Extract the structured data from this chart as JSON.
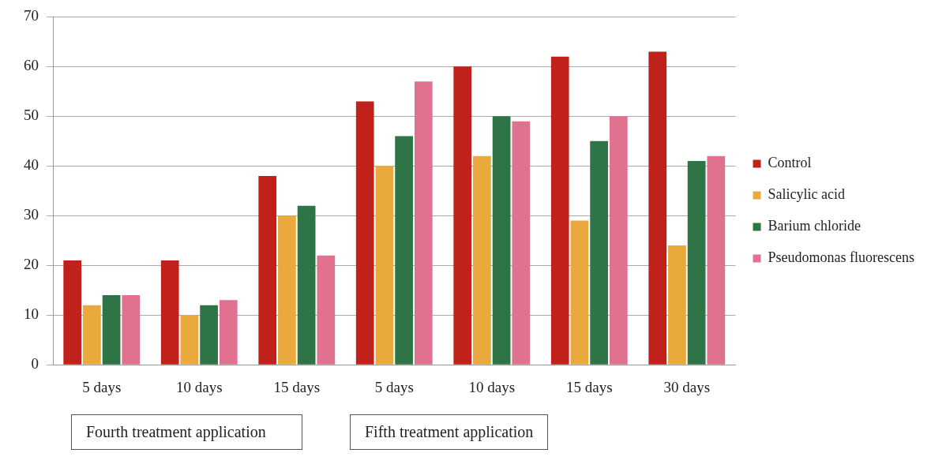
{
  "chart_data": {
    "type": "bar",
    "categories": [
      "5 days",
      "10 days",
      "15 days",
      "5 days",
      "10 days",
      "15 days",
      "30 days"
    ],
    "series": [
      {
        "name": "Control",
        "color": "#c0221b",
        "values": [
          21,
          21,
          38,
          53,
          60,
          62,
          63
        ]
      },
      {
        "name": "Salicylic acid",
        "color": "#e9a93c",
        "values": [
          12,
          10,
          30,
          40,
          42,
          29,
          24
        ]
      },
      {
        "name": "Barium chloride",
        "color": "#2f7446",
        "values": [
          14,
          12,
          32,
          46,
          50,
          45,
          41
        ]
      },
      {
        "name": "Pseudomonas fluorescens",
        "color": "#e0718f",
        "values": [
          14,
          13,
          22,
          57,
          49,
          50,
          42
        ]
      }
    ],
    "ylim": [
      0,
      70
    ],
    "yticks": [
      0,
      10,
      20,
      30,
      40,
      50,
      60,
      70
    ],
    "grid": "y",
    "legend": "right",
    "annotations": [
      "Fourth treatment application",
      "Fifth treatment application"
    ]
  }
}
